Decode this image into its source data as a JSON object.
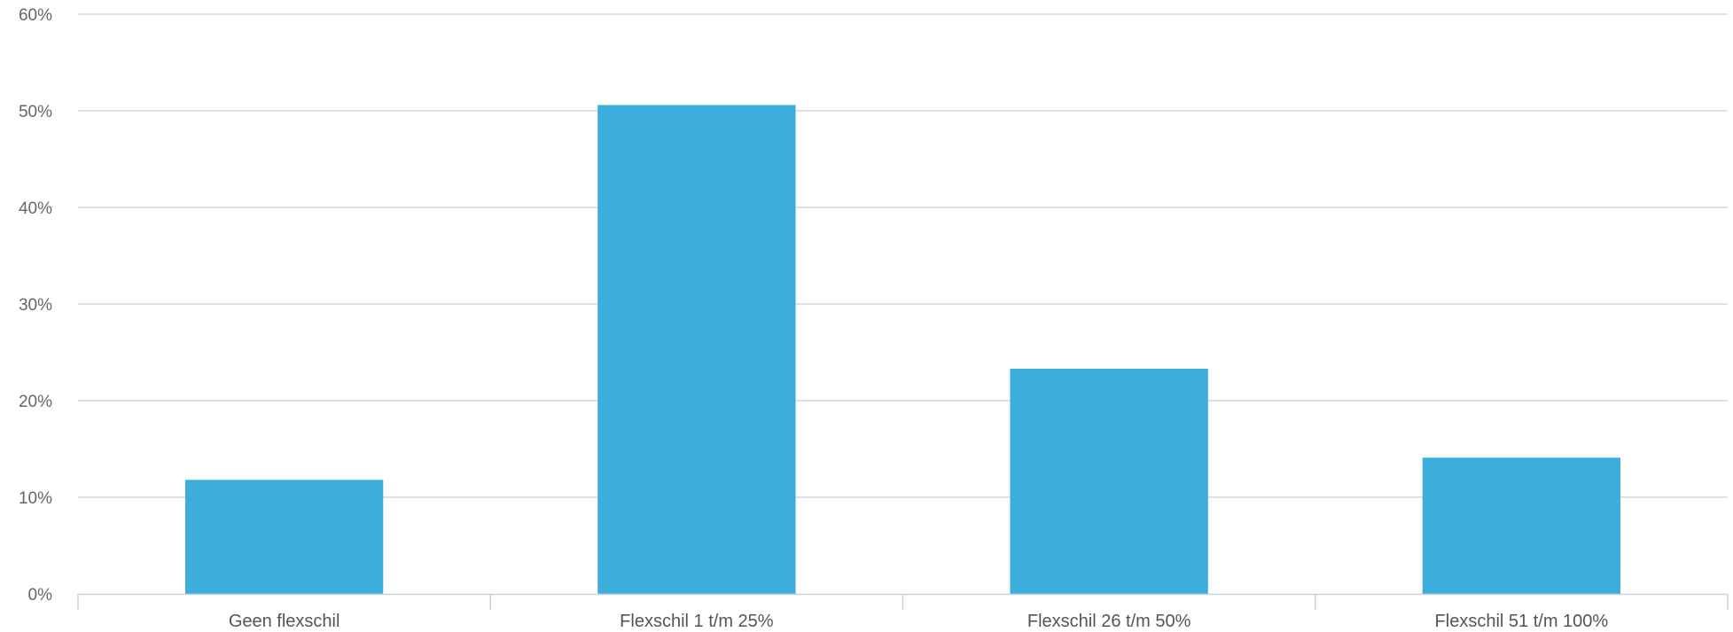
{
  "chart_data": {
    "type": "bar",
    "title": "",
    "xlabel": "",
    "ylabel": "",
    "categories": [
      "Geen flexschil",
      "Flexschil 1 t/m 25%",
      "Flexschil 26 t/m 50%",
      "Flexschil 51 t/m 100%"
    ],
    "values": [
      11.8,
      50.6,
      23.3,
      14.1
    ],
    "ylim": [
      0,
      60
    ],
    "yticks": [
      0,
      10,
      20,
      30,
      40,
      50,
      60
    ],
    "ytick_labels": [
      "0%",
      "10%",
      "20%",
      "30%",
      "40%",
      "50%",
      "60%"
    ],
    "grid": true,
    "legend": "none",
    "colors": {
      "bar": "#3daedb",
      "grid": "#d6d6d6",
      "axis": "#c5d3df",
      "tick_text": "#666666",
      "category_text": "#555555"
    }
  }
}
